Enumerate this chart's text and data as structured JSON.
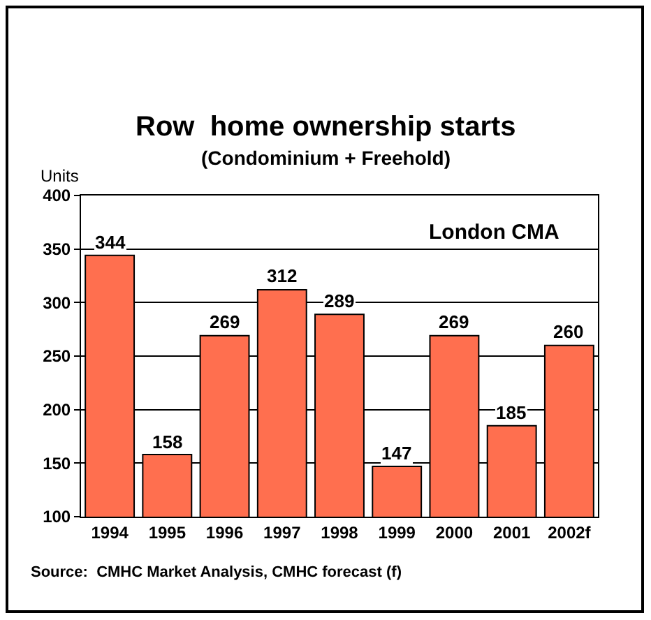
{
  "chart_data": {
    "type": "bar",
    "title": "Row  home ownership starts",
    "subtitle": "(Condominium + Freehold)",
    "ylabel": "Units",
    "categories": [
      "1994",
      "1995",
      "1996",
      "1997",
      "1998",
      "1999",
      "2000",
      "2001",
      "2002f"
    ],
    "values": [
      344,
      158,
      269,
      312,
      289,
      147,
      269,
      185,
      260
    ],
    "color": "#ff6f4f",
    "ylim": [
      100,
      400
    ],
    "yticks": [
      100,
      150,
      200,
      250,
      300,
      350,
      400
    ],
    "grid": "y",
    "data_labels": true,
    "legend": false,
    "annotations": [
      "London CMA",
      "Source:  CMHC Market Analysis, CMHC forecast (f)"
    ]
  }
}
